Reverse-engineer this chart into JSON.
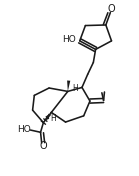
{
  "bg": "#ffffff",
  "lc": "#1a1a1a",
  "lw": 1.15,
  "figsize": [
    1.39,
    1.76
  ],
  "dpi": 100,
  "xlim": [
    -0.05,
    1.05
  ],
  "ylim": [
    -0.05,
    1.5
  ]
}
